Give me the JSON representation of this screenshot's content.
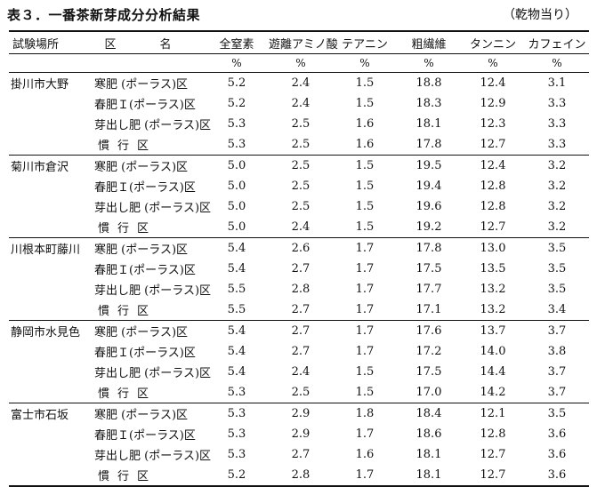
{
  "title": "表３．一番茶新芽成分分析結果",
  "note": "（乾物当り）",
  "headers": {
    "site": "試験場所",
    "plot": "区　名",
    "columns": [
      "全窒素",
      "遊離アミノ酸",
      "テアニン",
      "粗繊維",
      "タンニン",
      "カフェイン"
    ]
  },
  "units": [
    "%",
    "%",
    "%",
    "%",
    "%",
    "%"
  ],
  "groups": [
    {
      "site": "掛川市大野",
      "rows": [
        {
          "plot": "寒肥 (ポーラス)区",
          "values": [
            "5.2",
            "2.4",
            "1.5",
            "18.8",
            "12.4",
            "3.1"
          ]
        },
        {
          "plot": "春肥Ｉ(ポーラス)区",
          "values": [
            "5.2",
            "2.4",
            "1.5",
            "18.3",
            "12.9",
            "3.3"
          ]
        },
        {
          "plot": "芽出し肥 (ポーラス)区",
          "values": [
            "5.3",
            "2.5",
            "1.6",
            "18.1",
            "12.3",
            "3.3"
          ]
        },
        {
          "plot": "慣行区",
          "values": [
            "5.3",
            "2.5",
            "1.6",
            "17.8",
            "12.7",
            "3.3"
          ]
        }
      ]
    },
    {
      "site": "菊川市倉沢",
      "rows": [
        {
          "plot": "寒肥 (ポーラス)区",
          "values": [
            "5.0",
            "2.5",
            "1.5",
            "19.5",
            "12.4",
            "3.2"
          ]
        },
        {
          "plot": "春肥Ｉ(ポーラス)区",
          "values": [
            "5.0",
            "2.5",
            "1.5",
            "19.4",
            "12.8",
            "3.2"
          ]
        },
        {
          "plot": "芽出し肥 (ポーラス)区",
          "values": [
            "5.0",
            "2.5",
            "1.5",
            "19.6",
            "12.8",
            "3.2"
          ]
        },
        {
          "plot": "慣行区",
          "values": [
            "5.0",
            "2.4",
            "1.5",
            "19.2",
            "12.7",
            "3.2"
          ]
        }
      ]
    },
    {
      "site": "川根本町藤川",
      "rows": [
        {
          "plot": "寒肥 (ポーラス)区",
          "values": [
            "5.4",
            "2.6",
            "1.7",
            "17.8",
            "13.0",
            "3.5"
          ]
        },
        {
          "plot": "春肥Ｉ(ポーラス)区",
          "values": [
            "5.4",
            "2.7",
            "1.7",
            "17.5",
            "13.5",
            "3.5"
          ]
        },
        {
          "plot": "芽出し肥 (ポーラス)区",
          "values": [
            "5.5",
            "2.8",
            "1.7",
            "17.7",
            "13.2",
            "3.5"
          ]
        },
        {
          "plot": "慣行区",
          "values": [
            "5.5",
            "2.7",
            "1.7",
            "17.1",
            "13.2",
            "3.4"
          ]
        }
      ]
    },
    {
      "site": "静岡市水見色",
      "rows": [
        {
          "plot": "寒肥 (ポーラス)区",
          "values": [
            "5.4",
            "2.7",
            "1.7",
            "17.6",
            "13.7",
            "3.7"
          ]
        },
        {
          "plot": "春肥Ｉ(ポーラス)区",
          "values": [
            "5.4",
            "2.7",
            "1.7",
            "17.2",
            "14.0",
            "3.8"
          ]
        },
        {
          "plot": "芽出し肥 (ポーラス)区",
          "values": [
            "5.4",
            "2.4",
            "1.5",
            "17.5",
            "14.4",
            "3.7"
          ]
        },
        {
          "plot": "慣行区",
          "values": [
            "5.3",
            "2.5",
            "1.5",
            "17.0",
            "14.2",
            "3.7"
          ]
        }
      ]
    },
    {
      "site": "富士市石坂",
      "rows": [
        {
          "plot": "寒肥 (ポーラス)区",
          "values": [
            "5.3",
            "2.9",
            "1.8",
            "18.4",
            "12.1",
            "3.5"
          ]
        },
        {
          "plot": "春肥Ｉ(ポーラス)区",
          "values": [
            "5.3",
            "2.9",
            "1.7",
            "18.6",
            "12.8",
            "3.6"
          ]
        },
        {
          "plot": "芽出し肥 (ポーラス)区",
          "values": [
            "5.3",
            "2.7",
            "1.6",
            "18.1",
            "12.7",
            "3.6"
          ]
        },
        {
          "plot": "慣行区",
          "values": [
            "5.2",
            "2.8",
            "1.7",
            "18.1",
            "12.7",
            "3.6"
          ]
        }
      ]
    }
  ]
}
